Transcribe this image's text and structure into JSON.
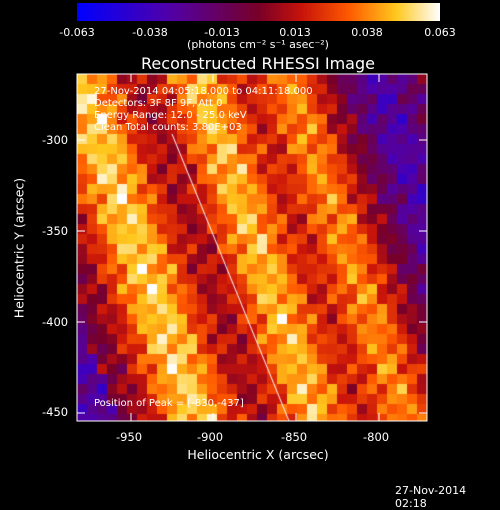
{
  "colorbar": {
    "ticks": [
      "-0.063",
      "-0.038",
      "-0.013",
      "0.013",
      "0.038",
      "0.063"
    ],
    "unit": "(photons cm⁻² s⁻¹ asec⁻²)"
  },
  "title": "Reconstructed RHESSI Image",
  "info": {
    "time": "27-Nov-2014 04:05:18.000 to 04:11:18.000",
    "detectors": "Detectors: 3F 8F 9F, Att 0",
    "energy": "Energy Range: 12.0 - 25.0 keV",
    "clean": "Clean      Total counts: 3.80E+03",
    "peak": "Position of Peak = [-830,-437]"
  },
  "axes": {
    "x_title": "Heliocentric X (arcsec)",
    "y_title": "Heliocentric Y (arcsec)",
    "x_ticks": [
      "-950",
      "-900",
      "-850",
      "-800"
    ],
    "y_ticks": [
      "-300",
      "-350",
      "-400",
      "-450"
    ]
  },
  "timestamp": "27-Nov-2014 02:18",
  "colors": {
    "background": "#000000",
    "limb_line": "#ffffff"
  }
}
